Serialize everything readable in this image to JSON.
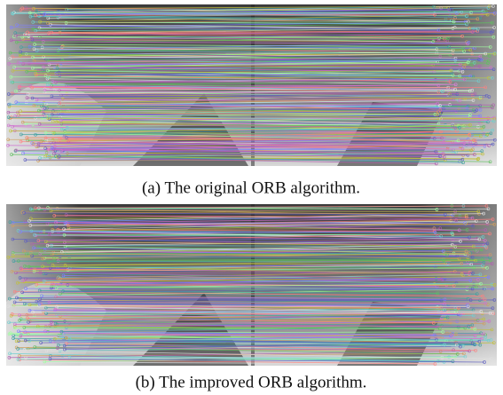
{
  "figures": [
    {
      "caption": "(a) The original ORB algorithm."
    },
    {
      "caption": "(b) The improved ORB algorithm."
    }
  ]
}
